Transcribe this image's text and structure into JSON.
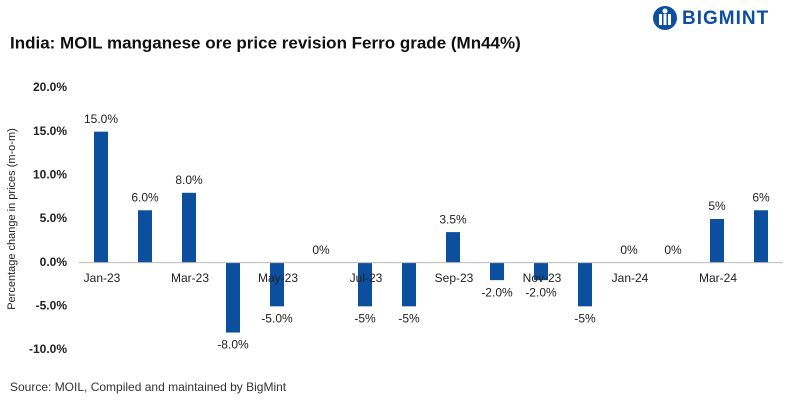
{
  "brand": "BIGMINT",
  "chart_data": {
    "type": "bar",
    "title": "India: MOIL manganese ore price revision Ferro grade (Mn44%)",
    "y_label": "Percentage change in prices (m-o-m)",
    "source": "Source: MOIL, Compiled and maintained by BigMint",
    "categories": [
      "Jan-23",
      null,
      "Mar-23",
      null,
      "May-23",
      null,
      "Jul-23",
      null,
      "Sep-23",
      null,
      "Nov-23",
      null,
      "Jan-24",
      null,
      "Mar-24",
      null
    ],
    "values": [
      15,
      6,
      8,
      -8,
      -5,
      0,
      -5,
      -5,
      3.5,
      -2,
      -2,
      -5,
      0,
      0,
      5,
      6
    ],
    "value_labels": [
      "15.0%",
      "6.0%",
      "8.0%",
      "-8.0%",
      "-5.0%",
      "0%",
      "-5%",
      "-5%",
      "3.5%",
      "-2.0%",
      "-2.0%",
      "-5%",
      "0%",
      "0%",
      "5%",
      "6%"
    ],
    "color": "#0d4f9f",
    "ylim": [
      -10,
      20
    ],
    "yticks": [
      {
        "value": -10,
        "label": "-10.0%"
      },
      {
        "value": -5,
        "label": "-5.0%"
      },
      {
        "value": 0,
        "label": "0.0%"
      },
      {
        "value": 5,
        "label": "5.0%"
      },
      {
        "value": 10,
        "label": "10.0%"
      },
      {
        "value": 15,
        "label": "15.0%"
      },
      {
        "value": 20,
        "label": "20.0%"
      }
    ],
    "grid": false
  }
}
